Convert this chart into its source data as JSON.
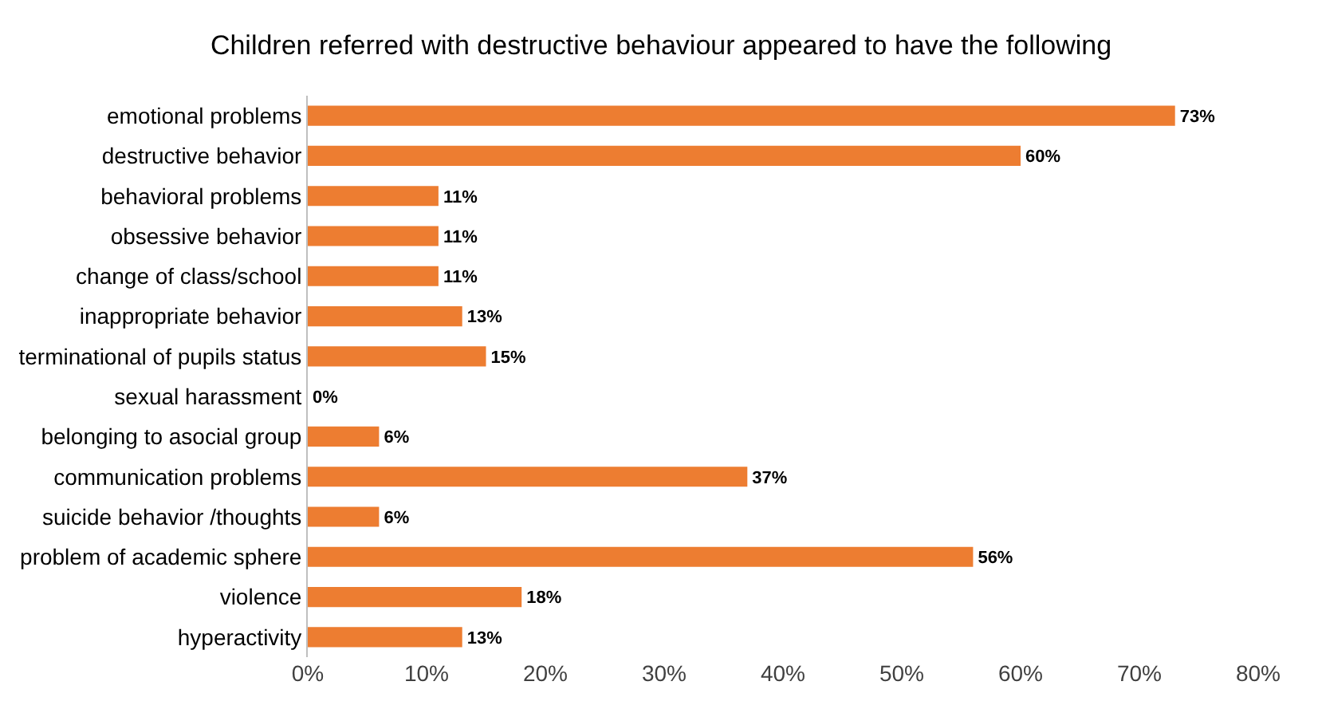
{
  "chart_data": {
    "type": "bar",
    "orientation": "horizontal",
    "title": "Children referred with destructive behaviour appeared to have the following",
    "categories": [
      "emotional problems",
      "destructive behavior",
      "behavioral problems",
      "obsessive behavior",
      "change of class/school",
      "inappropriate behavior",
      "terminational of pupils status",
      "sexual harassment",
      "belonging to asocial group",
      "communication problems",
      "suicide behavior /thoughts",
      "problem of academic sphere",
      "violence",
      "hyperactivity"
    ],
    "values": [
      73,
      60,
      11,
      11,
      11,
      13,
      15,
      0,
      6,
      37,
      6,
      56,
      18,
      13
    ],
    "value_labels": [
      "73%",
      "60%",
      "11%",
      "11%",
      "11%",
      "13%",
      "15%",
      "0%",
      "6%",
      "37%",
      "6%",
      "56%",
      "18%",
      "13%"
    ],
    "color": "#ed7d31",
    "xlim": [
      0,
      80
    ],
    "xticks": [
      {
        "value": 0,
        "label": "0%"
      },
      {
        "value": 10,
        "label": "10%"
      },
      {
        "value": 20,
        "label": "20%"
      },
      {
        "value": 30,
        "label": "30%"
      },
      {
        "value": 40,
        "label": "40%"
      },
      {
        "value": 50,
        "label": "50%"
      },
      {
        "value": 60,
        "label": "60%"
      },
      {
        "value": 70,
        "label": "70%"
      },
      {
        "value": 80,
        "label": "80%"
      }
    ],
    "legend": false
  }
}
